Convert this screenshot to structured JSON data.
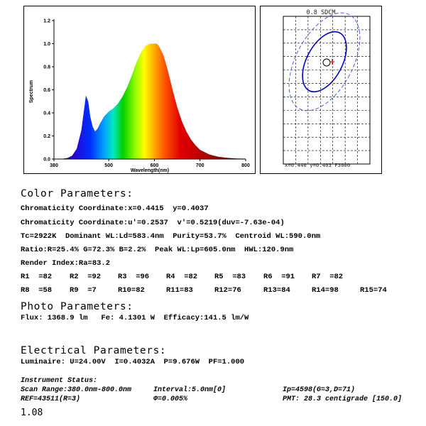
{
  "spectrum_chart": {
    "chart_data": {
      "type": "area",
      "xlabel": "Wavelength(nm)",
      "ylabel": "Spectrum",
      "xlim": [
        380,
        800
      ],
      "ylim": [
        0,
        1.2
      ],
      "x_ticks": [
        {
          "v": 380,
          "label": "380"
        },
        {
          "v": 500,
          "label": "500"
        },
        {
          "v": 600,
          "label": "600"
        },
        {
          "v": 700,
          "label": "700"
        },
        {
          "v": 800,
          "label": "800"
        }
      ],
      "y_ticks": [
        {
          "v": 0.0,
          "label": "0.0"
        },
        {
          "v": 0.2,
          "label": "0.2"
        },
        {
          "v": 0.4,
          "label": "0.4"
        },
        {
          "v": 0.6,
          "label": "0.6"
        },
        {
          "v": 0.8,
          "label": "0.8"
        },
        {
          "v": 1.0,
          "label": "1.0"
        },
        {
          "v": 1.2,
          "label": "1.2"
        }
      ],
      "x": [
        400,
        410,
        420,
        430,
        440,
        445,
        450,
        455,
        460,
        465,
        470,
        475,
        480,
        490,
        500,
        510,
        520,
        530,
        540,
        550,
        560,
        570,
        580,
        590,
        600,
        605,
        610,
        620,
        630,
        640,
        650,
        660,
        670,
        680,
        690,
        700,
        720,
        740,
        760,
        780,
        800
      ],
      "values": [
        0.003,
        0.01,
        0.03,
        0.09,
        0.25,
        0.4,
        0.55,
        0.5,
        0.36,
        0.28,
        0.24,
        0.26,
        0.3,
        0.37,
        0.41,
        0.44,
        0.48,
        0.54,
        0.62,
        0.72,
        0.83,
        0.92,
        0.98,
        1.0,
        1.0,
        1.0,
        0.98,
        0.9,
        0.76,
        0.6,
        0.45,
        0.33,
        0.24,
        0.17,
        0.12,
        0.08,
        0.04,
        0.02,
        0.01,
        0.005,
        0.003
      ]
    }
  },
  "sdcm_chart": {
    "title": "0.8 SDCM",
    "footer": "x=0.440 y=0.403 F3000"
  },
  "color_params": {
    "heading": "Color Parameters:",
    "line1": "Chromaticity Coordinate:x=0.4415  y=0.4037",
    "line2": "Chromaticity Coordinate:u'=0.2537  v'=0.5219(duv=-7.63e-04)",
    "line3": "Tc=2922K  Dominant WL:Ld=583.4nm  Purity=53.7%  Centroid WL:590.0nm",
    "line4": "Ratio:R=25.4% G=72.3% B=2.2%  Peak WL:Lp=605.0nm  HWL:120.9nm",
    "line5": "Render Index:Ra=83.2",
    "r_row1": [
      "R1  =82",
      "R2  =92",
      "R3  =96",
      "R4  =82",
      "R5  =83",
      "R6  =91",
      "R7  =82"
    ],
    "r_row2": [
      "R8  =58",
      "R9  =7",
      "R10=82",
      "R11=83",
      "R12=76",
      "R13=84",
      "R14=98",
      "R15=74"
    ]
  },
  "photo_params": {
    "heading": "Photo Parameters:",
    "line1": "Flux: 1368.9 lm   Fe: 4.1301 W  Efficacy:141.5 lm/W"
  },
  "electrical_params": {
    "heading": "Electrical Parameters:",
    "line1": "Luminaire: U=24.00V  I=0.4032A  P=9.676W  PF=1.000"
  },
  "instrument": {
    "status_label": "Instrument Status:",
    "scan_range": "Scan Range:380.0nm-800.0nm",
    "interval": "Interval:5.0nm[0]",
    "ip": "Ip=4598(G=3,D=71)",
    "ref": "REF=43511(R=3)",
    "phi": "Φ=0.005%",
    "pmt": "PMT: 28.3 centigrade [150.0]"
  },
  "version": "1.08"
}
